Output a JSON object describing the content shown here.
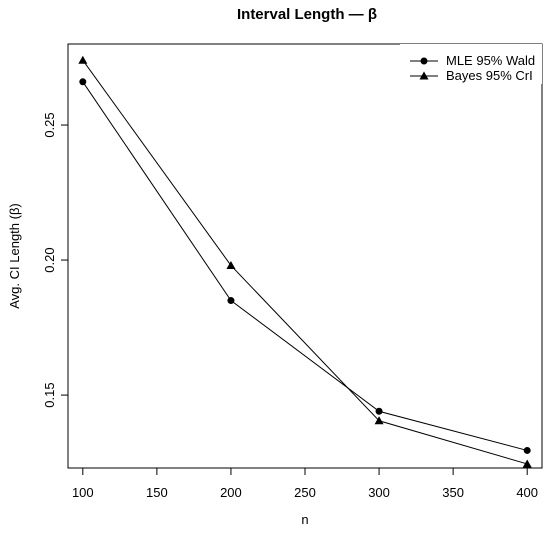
{
  "chart_data": {
    "type": "line",
    "title": "Interval Length — β",
    "xlabel": "n",
    "ylabel": "Avg. CI Length (β)",
    "x": [
      100,
      200,
      300,
      400
    ],
    "xlim": [
      90,
      410
    ],
    "ylim": [
      0.123,
      0.28
    ],
    "xticks": [
      "100",
      "150",
      "200",
      "250",
      "300",
      "350",
      "400"
    ],
    "yticks": [
      "0.15",
      "0.20",
      "0.25"
    ],
    "grid": false,
    "legend_position": "top-right",
    "series": [
      {
        "name": "MLE 95% Wald",
        "marker": "circle",
        "values": [
          0.266,
          0.185,
          0.144,
          0.1295
        ]
      },
      {
        "name": "Bayes 95% CrI",
        "marker": "triangle",
        "values": [
          0.274,
          0.198,
          0.1405,
          0.1245
        ]
      }
    ]
  }
}
